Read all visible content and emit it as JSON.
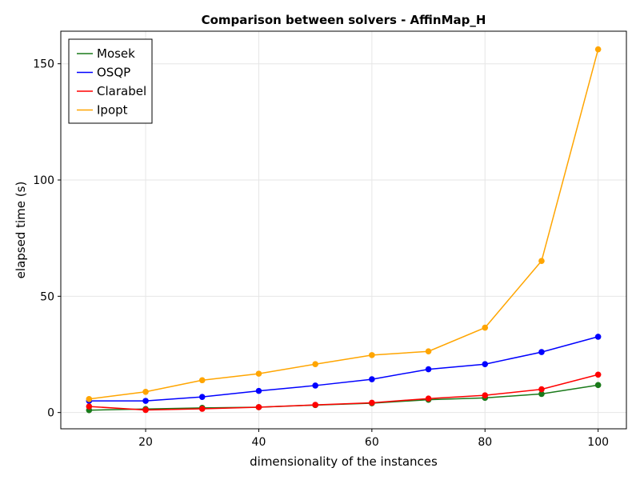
{
  "chart_data": {
    "type": "line",
    "title": "Comparison between solvers - AffinMap_H",
    "xlabel": "dimensionality of the instances",
    "ylabel": "elapsed time (s)",
    "xlim": [
      5,
      105
    ],
    "ylim": [
      -7,
      164
    ],
    "xticks": [
      20,
      40,
      60,
      80,
      100
    ],
    "yticks": [
      0,
      50,
      100,
      150
    ],
    "grid": true,
    "legend_position": "top-left",
    "x": [
      10,
      20,
      30,
      40,
      50,
      60,
      70,
      80,
      90,
      100
    ],
    "series": [
      {
        "name": "Mosek",
        "color": "#1a7a1a",
        "values": [
          1.0,
          1.5,
          2.0,
          2.3,
          3.2,
          4.0,
          5.5,
          6.3,
          8.0,
          11.8
        ]
      },
      {
        "name": "OSQP",
        "color": "#0000ff",
        "values": [
          5.0,
          5.0,
          6.7,
          9.3,
          11.6,
          14.3,
          18.6,
          20.8,
          26.0,
          32.6
        ]
      },
      {
        "name": "Clarabel",
        "color": "#ff0000",
        "values": [
          2.6,
          1.1,
          1.6,
          2.3,
          3.3,
          4.2,
          6.0,
          7.4,
          10.0,
          16.3
        ]
      },
      {
        "name": "Ipopt",
        "color": "#ffa500",
        "values": [
          5.8,
          8.9,
          13.9,
          16.7,
          20.8,
          24.7,
          26.3,
          36.5,
          65.2,
          156.2
        ]
      }
    ]
  }
}
